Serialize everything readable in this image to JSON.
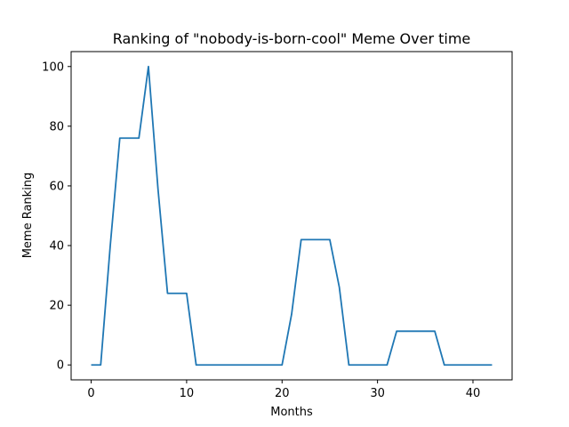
{
  "chart_data": {
    "type": "line",
    "title": "Ranking of \"nobody-is-born-cool\" Meme Over time",
    "xlabel": "Months",
    "ylabel": "Meme Ranking",
    "xlim": [
      -2.1,
      44.1
    ],
    "ylim": [
      -5,
      105
    ],
    "xticks": [
      0,
      10,
      20,
      30,
      40
    ],
    "yticks": [
      0,
      20,
      40,
      60,
      80,
      100
    ],
    "grid": false,
    "legend": "none",
    "series": [
      {
        "color": "#1f77b4",
        "x": [
          0,
          1,
          2,
          3,
          4,
          5,
          6,
          7,
          8,
          9,
          10,
          11,
          12,
          13,
          14,
          15,
          16,
          17,
          18,
          19,
          20,
          21,
          22,
          23,
          24,
          25,
          26,
          27,
          28,
          29,
          30,
          31,
          32,
          33,
          34,
          35,
          36,
          37,
          38,
          39,
          40,
          41,
          42
        ],
        "y": [
          0,
          0,
          40,
          76,
          76,
          76,
          100,
          59,
          24,
          24,
          24,
          0,
          0,
          0,
          0,
          0,
          0,
          0,
          0,
          0,
          0,
          17,
          42,
          42,
          42,
          42,
          26,
          0,
          0,
          0,
          0,
          0,
          11.3,
          11.3,
          11.3,
          11.3,
          11.3,
          0,
          0,
          0,
          0,
          0,
          0
        ]
      }
    ]
  }
}
